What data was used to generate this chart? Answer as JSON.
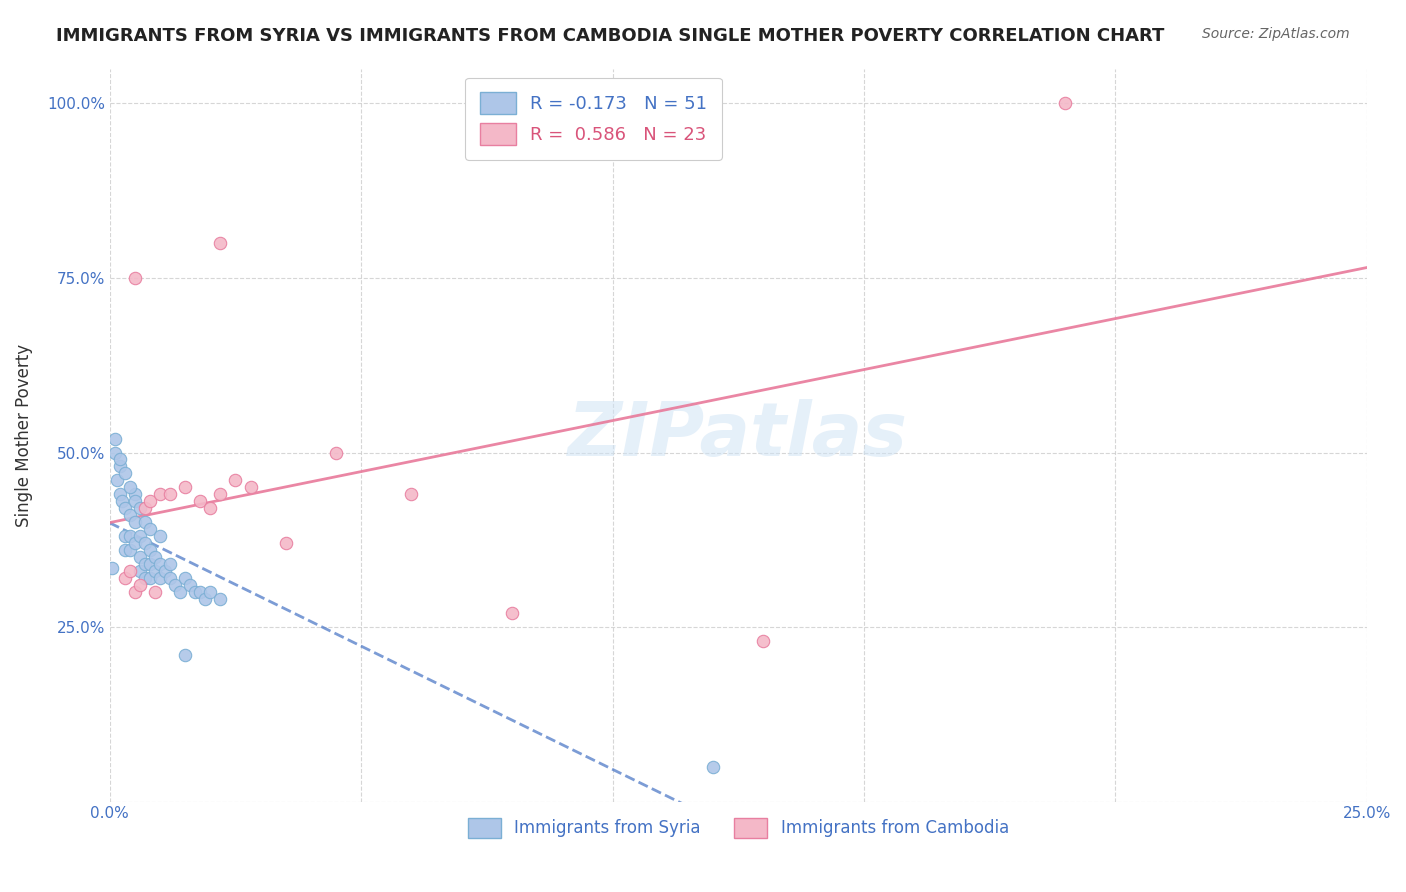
{
  "title": "IMMIGRANTS FROM SYRIA VS IMMIGRANTS FROM CAMBODIA SINGLE MOTHER POVERTY CORRELATION CHART",
  "source": "Source: ZipAtlas.com",
  "ylabel": "Single Mother Poverty",
  "xlim": [
    0.0,
    0.25
  ],
  "ylim": [
    0.0,
    1.05
  ],
  "watermark": "ZIPatlas",
  "syria_x": [
    0.0005,
    0.001,
    0.0015,
    0.002,
    0.002,
    0.0025,
    0.003,
    0.003,
    0.003,
    0.004,
    0.004,
    0.004,
    0.005,
    0.005,
    0.005,
    0.006,
    0.006,
    0.006,
    0.007,
    0.007,
    0.007,
    0.008,
    0.008,
    0.008,
    0.009,
    0.009,
    0.01,
    0.01,
    0.011,
    0.012,
    0.012,
    0.013,
    0.014,
    0.015,
    0.016,
    0.017,
    0.018,
    0.019,
    0.02,
    0.022,
    0.001,
    0.002,
    0.003,
    0.004,
    0.005,
    0.006,
    0.007,
    0.008,
    0.01,
    0.015,
    0.12
  ],
  "syria_y": [
    0.335,
    0.5,
    0.46,
    0.48,
    0.44,
    0.43,
    0.42,
    0.38,
    0.36,
    0.41,
    0.38,
    0.36,
    0.44,
    0.4,
    0.37,
    0.38,
    0.35,
    0.33,
    0.37,
    0.34,
    0.32,
    0.36,
    0.34,
    0.32,
    0.35,
    0.33,
    0.34,
    0.32,
    0.33,
    0.34,
    0.32,
    0.31,
    0.3,
    0.32,
    0.31,
    0.3,
    0.3,
    0.29,
    0.3,
    0.29,
    0.52,
    0.49,
    0.47,
    0.45,
    0.43,
    0.42,
    0.4,
    0.39,
    0.38,
    0.21,
    0.05
  ],
  "cambodia_x": [
    0.003,
    0.004,
    0.005,
    0.006,
    0.007,
    0.008,
    0.009,
    0.01,
    0.012,
    0.015,
    0.018,
    0.02,
    0.022,
    0.025,
    0.028,
    0.035,
    0.045,
    0.06,
    0.08,
    0.13,
    0.005,
    0.022,
    0.19
  ],
  "cambodia_y": [
    0.32,
    0.33,
    0.3,
    0.31,
    0.42,
    0.43,
    0.3,
    0.44,
    0.44,
    0.45,
    0.43,
    0.42,
    0.44,
    0.46,
    0.45,
    0.37,
    0.5,
    0.44,
    0.27,
    0.23,
    0.75,
    0.8,
    1.0
  ],
  "syria_color": "#aec6e8",
  "syria_edge_color": "#7bafd4",
  "cambodia_color": "#f4b8c8",
  "cambodia_edge_color": "#e87fa0",
  "syria_line_color": "#4472C4",
  "cambodia_line_color": "#e8799a",
  "background_color": "#ffffff",
  "marker_size": 80
}
